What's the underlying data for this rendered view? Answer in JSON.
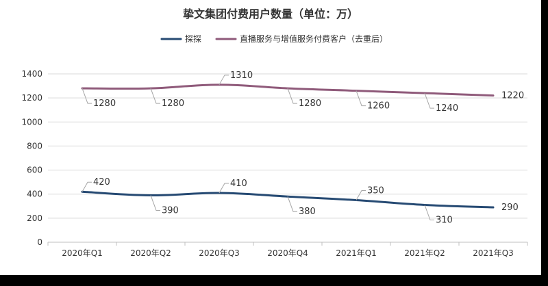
{
  "chart_data": {
    "type": "line",
    "title": "挚文集团付费用户数量（单位：万）",
    "categories": [
      "2020年Q1",
      "2020年Q2",
      "2020年Q3",
      "2020年Q4",
      "2021年Q1",
      "2021年Q2",
      "2021年Q3"
    ],
    "ylim": [
      0,
      1400
    ],
    "yticks": [
      0,
      200,
      400,
      600,
      800,
      1000,
      1200,
      1400
    ],
    "ytick_labels": [
      "0",
      "200",
      "400",
      "600",
      "800",
      "1000",
      "1200",
      "1400"
    ],
    "grid": true,
    "legend_position": "top-center",
    "series": [
      {
        "name": "探探",
        "color": "#264a73",
        "values": [
          420,
          390,
          410,
          380,
          350,
          310,
          290
        ],
        "labels": [
          "420",
          "390",
          "410",
          "380",
          "350",
          "310",
          "290"
        ]
      },
      {
        "name": "直播服务与增值服务付费客户（去重后）",
        "color": "#8f5a7a",
        "values": [
          1280,
          1280,
          1310,
          1280,
          1260,
          1240,
          1220
        ],
        "labels": [
          "1280",
          "1280",
          "1310",
          "1280",
          "1260",
          "1240",
          "1220"
        ]
      }
    ]
  }
}
